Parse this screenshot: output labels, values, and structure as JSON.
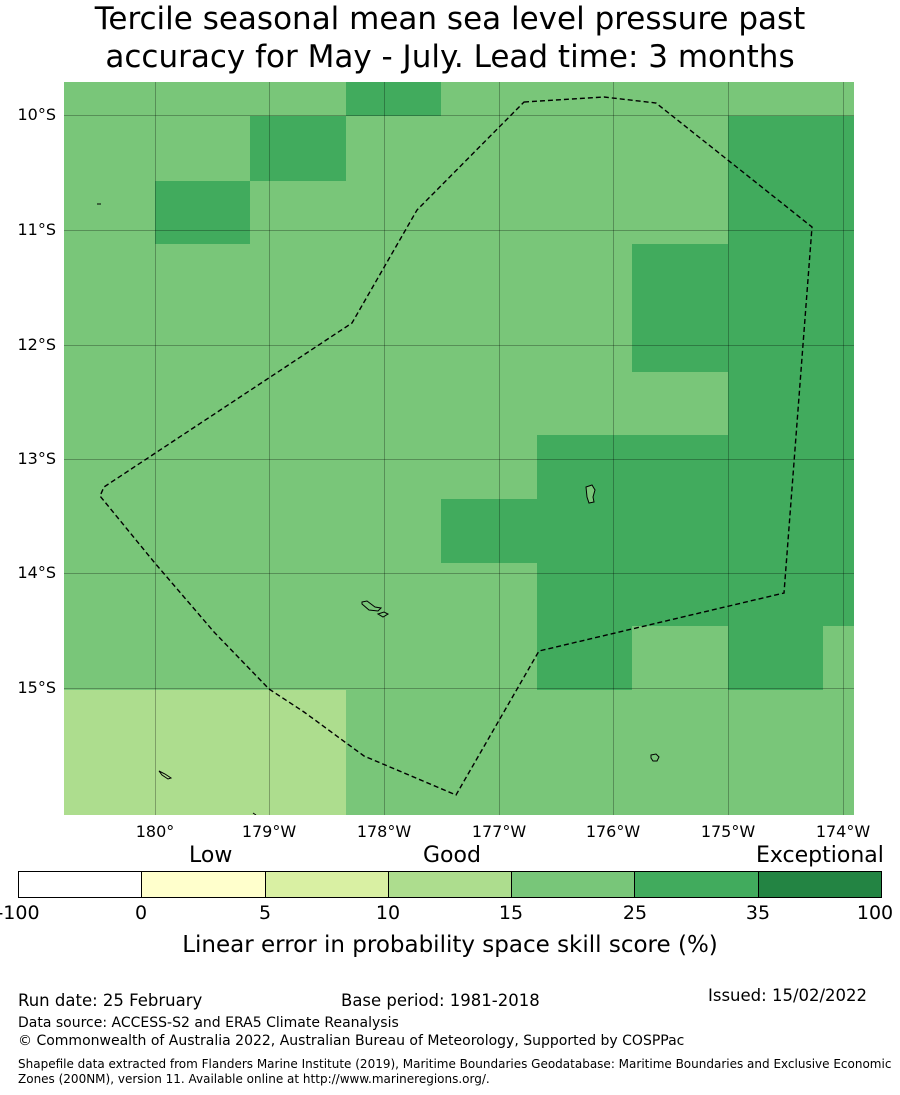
{
  "title_line1": "Tercile seasonal mean sea level pressure past",
  "title_line2": "accuracy for May - July. Lead time: 3 months",
  "lat_labels": [
    "10°S",
    "11°S",
    "12°S",
    "13°S",
    "14°S",
    "15°S"
  ],
  "lon_labels": [
    "180°",
    "179°W",
    "178°W",
    "177°W",
    "176°W",
    "175°W",
    "174°W"
  ],
  "legend": {
    "categories": [
      "Low",
      "Good",
      "Exceptional"
    ],
    "bounds": [
      "-100",
      "0",
      "5",
      "10",
      "15",
      "25",
      "35",
      "100"
    ],
    "colors": [
      "#ffffff",
      "#ffffcc",
      "#d9f0a3",
      "#addd8e",
      "#78c679",
      "#41ab5d",
      "#238443"
    ],
    "title": "Linear error in probability space skill score (%)"
  },
  "footer": {
    "run_date": "Run date: 25 February",
    "base_period": "Base period: 1981-2018",
    "issued": "Issued: 15/02/2022",
    "data_source": "Data source: ACCESS-S2 and ERA5 Climate Reanalysis",
    "copyright": "© Commonwealth of Australia 2022, Australian Bureau of Meteorology, Supported by COSPPac",
    "shapefile_note": "Shapefile data extracted from Flanders Marine Institute (2019), Maritime Boundaries Geodatabase: Maritime Boundaries and Exclusive Economic Zones (200NM), version 11. Available online at http://www.marineregions.org/."
  }
}
